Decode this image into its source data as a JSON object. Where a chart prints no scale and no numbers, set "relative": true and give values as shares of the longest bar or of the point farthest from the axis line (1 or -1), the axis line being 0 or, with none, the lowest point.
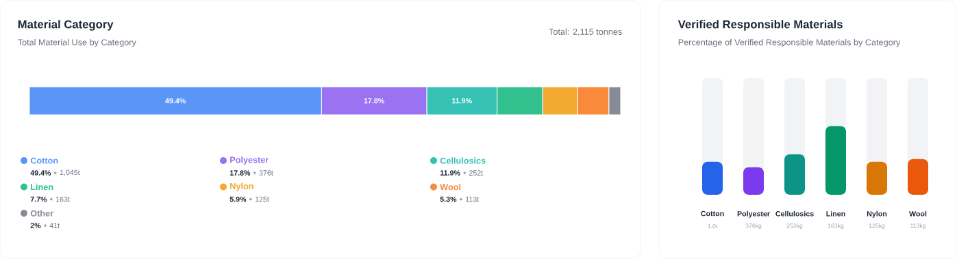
{
  "chart_data": [
    {
      "type": "bar",
      "orientation": "horizontal",
      "stacked": true,
      "title": "Material Category",
      "subtitle": "Total Material Use by Category",
      "categories": [
        null
      ],
      "tick_labels": false,
      "legend": "bottom",
      "data_labels": true,
      "series": [
        {
          "name": "Cotton",
          "color": "#5b96f7",
          "values": [
            49.4
          ],
          "value_labels": [
            "49.4%"
          ]
        },
        {
          "name": "Polyester",
          "color": "#9b72f2",
          "values": [
            17.8
          ],
          "value_labels": [
            "17.8%"
          ]
        },
        {
          "name": "Cellulosics",
          "color": "#35c2b4",
          "values": [
            11.9
          ],
          "value_labels": [
            "11.9%"
          ]
        },
        {
          "name": "Linen",
          "color": "#33c08f",
          "values": [
            7.7
          ],
          "value_labels": [
            null
          ]
        },
        {
          "name": "Nylon",
          "color": "#f2aa30",
          "values": [
            5.9
          ],
          "value_labels": [
            null
          ]
        },
        {
          "name": "Wool",
          "color": "#f98a3b",
          "values": [
            5.3
          ],
          "value_labels": [
            null
          ]
        },
        {
          "name": "Other",
          "color": "#868c96",
          "values": [
            2
          ],
          "value_labels": [
            null
          ]
        }
      ],
      "annotations": [
        "Total: 2,115 tonnes",
        "49.4%",
        "1,045t",
        "17.8%",
        "376t",
        "11.9%",
        "252t",
        "7.7%",
        "163t",
        "5.9%",
        "125t",
        "5.3%",
        "113t",
        "2%",
        "41t"
      ]
    },
    {
      "type": "bar",
      "relative": true,
      "title": "Verified Responsible Materials",
      "subtitle": "Percentage of Verified Responsible Materials by Category",
      "categories": [
        "Cotton",
        "Polyester",
        "Cellulosics",
        "Linen",
        "Nylon",
        "Wool"
      ],
      "values": [
        0.48,
        0.4,
        0.59,
        1,
        0.48,
        0.52
      ],
      "colors": [
        "#2563eb",
        "#7c3aed",
        "#0d9488",
        "#059669",
        "#d97706",
        "#ea580c"
      ],
      "annotations": [
        "1.0t",
        "376kg",
        "252kg",
        "163kg",
        "125kg",
        "113kg"
      ]
    }
  ]
}
